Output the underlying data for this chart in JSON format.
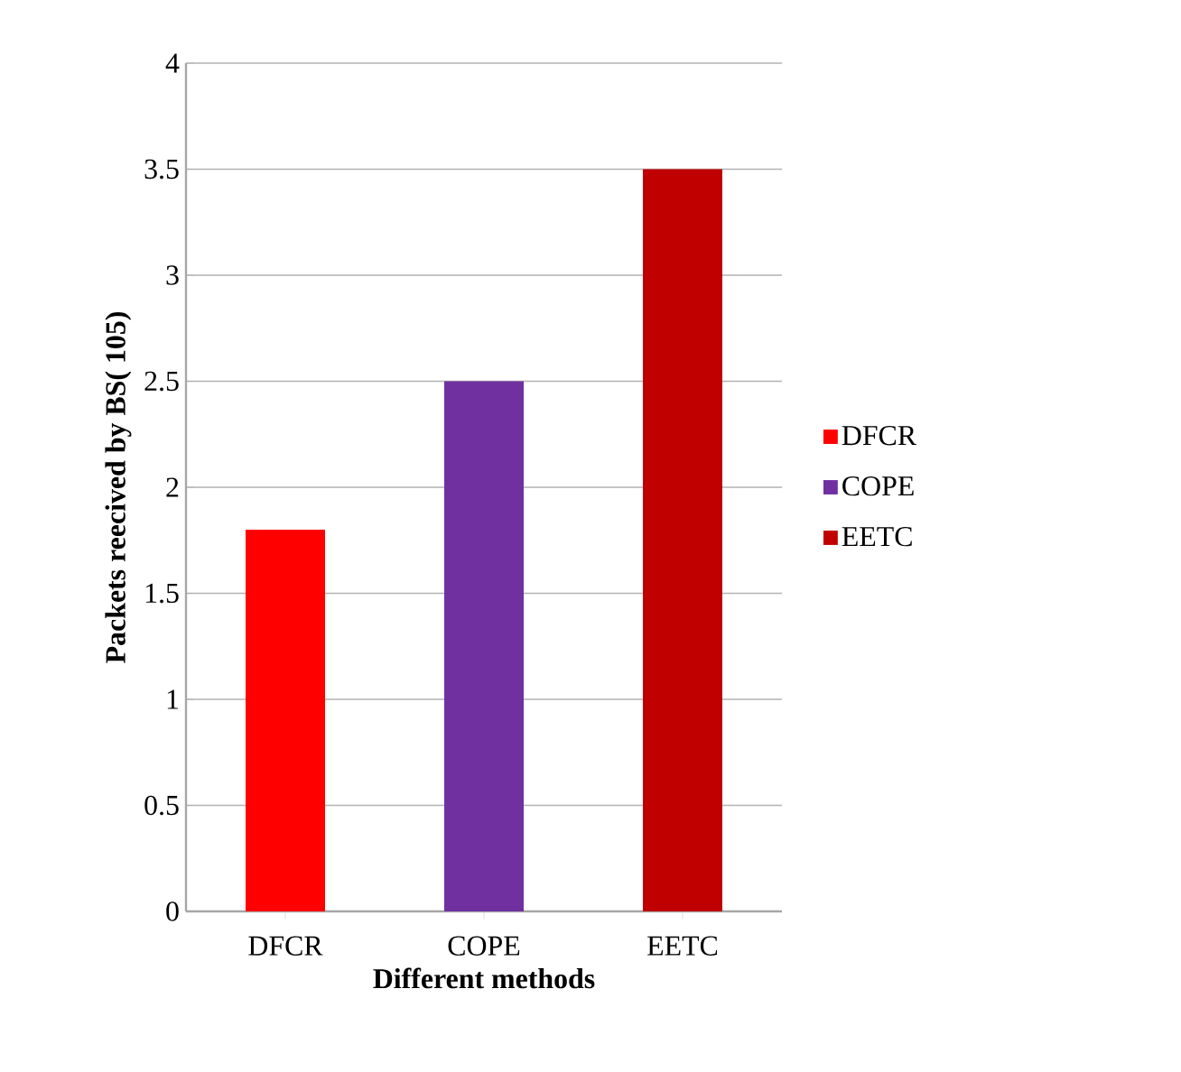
{
  "chart_data": {
    "type": "bar",
    "xlabel": "Different methods",
    "ylabel": "Packets reecived by BS( 105)",
    "categories": [
      "DFCR",
      "COPE",
      "EETC"
    ],
    "series": [
      {
        "name": "DFCR",
        "color": "#ff0000",
        "values": [
          1.8,
          null,
          null
        ]
      },
      {
        "name": "COPE",
        "color": "#7030a0",
        "values": [
          null,
          2.5,
          null
        ]
      },
      {
        "name": "EETC",
        "color": "#c00000",
        "values": [
          null,
          null,
          3.5
        ]
      }
    ],
    "ylim": [
      0,
      4
    ],
    "yticks": [
      0,
      0.5,
      1,
      1.5,
      2,
      2.5,
      3,
      3.5,
      4
    ],
    "grid": "y",
    "legend": "right"
  }
}
